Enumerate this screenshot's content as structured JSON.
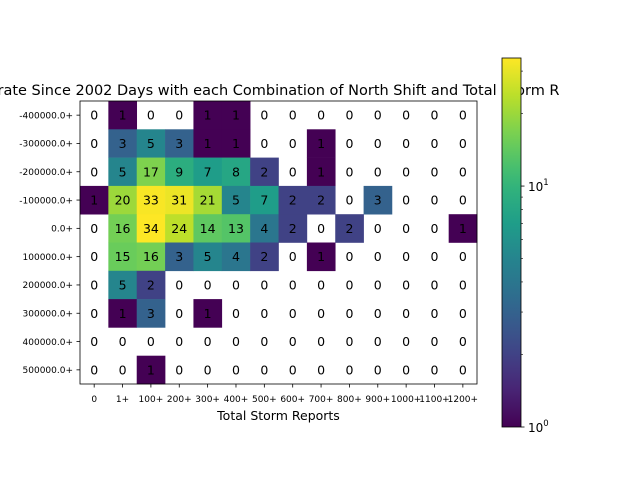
{
  "chart_data": {
    "type": "heatmap",
    "title": "rate Since 2002 Days with each Combination of North Shift and Total Storm R",
    "xlabel": "Total Storm Reports",
    "ylabel": "",
    "x_categories": [
      "0",
      "1+",
      "100+",
      "200+",
      "300+",
      "400+",
      "500+",
      "600+",
      "700+",
      "800+",
      "900+",
      "1000+",
      "1100+",
      "1200+"
    ],
    "y_categories": [
      "-400000.0+",
      "-300000.0+",
      "-200000.0+",
      "-100000.0+",
      "0.0+",
      "100000.0+",
      "200000.0+",
      "300000.0+",
      "400000.0+",
      "500000.0+"
    ],
    "values": [
      [
        0,
        1,
        0,
        0,
        1,
        1,
        0,
        0,
        0,
        0,
        0,
        0,
        0,
        0
      ],
      [
        0,
        3,
        5,
        3,
        1,
        1,
        0,
        0,
        1,
        0,
        0,
        0,
        0,
        0
      ],
      [
        0,
        5,
        17,
        9,
        7,
        8,
        2,
        0,
        1,
        0,
        0,
        0,
        0,
        0
      ],
      [
        1,
        20,
        33,
        31,
        21,
        5,
        7,
        2,
        2,
        0,
        3,
        0,
        0,
        0
      ],
      [
        0,
        16,
        34,
        24,
        14,
        13,
        4,
        2,
        0,
        2,
        0,
        0,
        0,
        1
      ],
      [
        0,
        15,
        16,
        3,
        5,
        4,
        2,
        0,
        1,
        0,
        0,
        0,
        0,
        0
      ],
      [
        0,
        5,
        2,
        0,
        0,
        0,
        0,
        0,
        0,
        0,
        0,
        0,
        0,
        0
      ],
      [
        0,
        1,
        3,
        0,
        1,
        0,
        0,
        0,
        0,
        0,
        0,
        0,
        0,
        0
      ],
      [
        0,
        0,
        0,
        0,
        0,
        0,
        0,
        0,
        0,
        0,
        0,
        0,
        0,
        0
      ],
      [
        0,
        0,
        1,
        0,
        0,
        0,
        0,
        0,
        0,
        0,
        0,
        0,
        0,
        0
      ]
    ],
    "colormap": "viridis",
    "color_scale": "log",
    "color_range": [
      1,
      34
    ],
    "colorbar_ticks": [
      {
        "value": 1,
        "base": "10",
        "exp": "0"
      },
      {
        "value": 10,
        "base": "10",
        "exp": "1"
      }
    ],
    "zero_color": "#ffffff",
    "grid": false
  }
}
